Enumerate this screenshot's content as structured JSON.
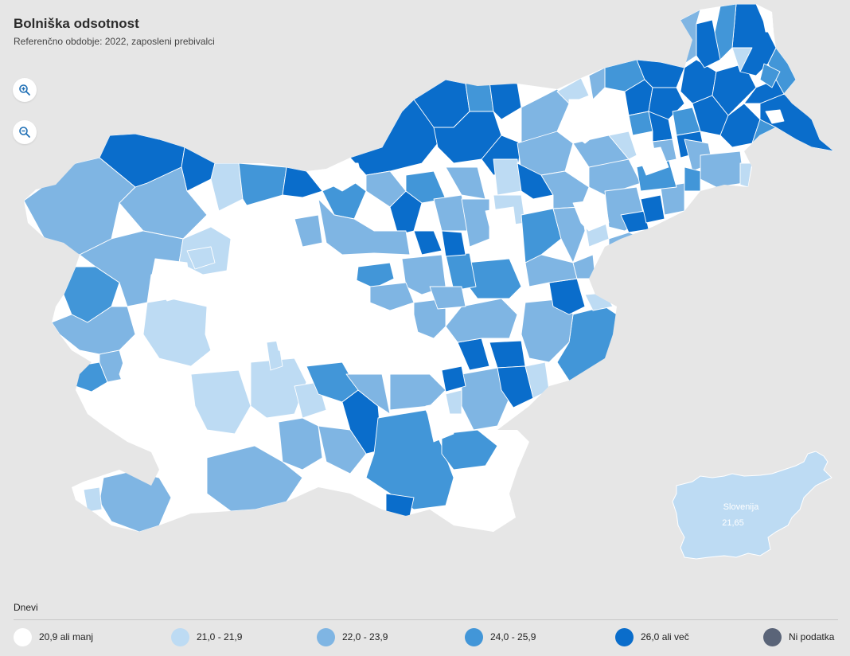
{
  "header": {
    "title": "Bolniška odsotnost",
    "subtitle": "Referenčno obdobje: 2022, zaposleni prebivalci"
  },
  "controls": {
    "zoom_in_icon": "zoom-in-icon",
    "zoom_out_icon": "zoom-out-icon"
  },
  "legend": {
    "title": "Dnevi",
    "items": [
      {
        "label": "20,9 ali manj",
        "color": "#ffffff"
      },
      {
        "label": "21,0 - 21,9",
        "color": "#bddbf3"
      },
      {
        "label": "22,0 - 23,9",
        "color": "#7fb5e3"
      },
      {
        "label": "24,0 - 25,9",
        "color": "#4296d8"
      },
      {
        "label": "26,0 ali več",
        "color": "#0a6dcb"
      },
      {
        "label": "Ni podatka",
        "color": "#5a6478"
      }
    ]
  },
  "inset": {
    "name": "Slovenija",
    "value": "21,65",
    "color": "#bddbf3"
  }
}
